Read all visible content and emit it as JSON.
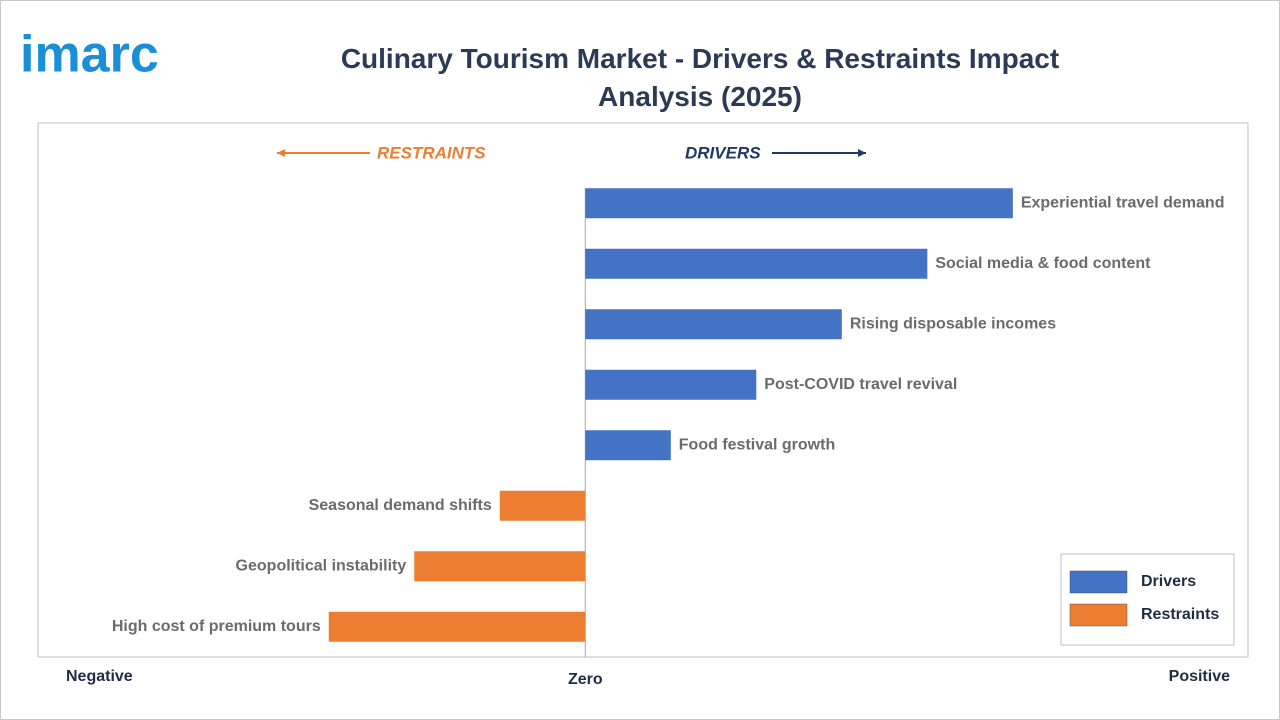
{
  "logo": "imarc",
  "chart_data": {
    "type": "diverging-bar",
    "title": "Culinary Tourism Market - Drivers & Restraints Impact Analysis (2025)",
    "annotations": [
      "RESTRAINTS",
      "DRIVERS"
    ],
    "categories": [
      "Experiential travel demand",
      "Social media & food content",
      "Rising disposable incomes",
      "Post-COVID travel revival",
      "Food festival growth",
      "Seasonal demand shifts",
      "Geopolitical instability",
      "High cost of premium tours"
    ],
    "series": [
      {
        "name": "Drivers",
        "color": "#4472c4",
        "values": [
          5,
          4,
          3,
          2,
          1,
          null,
          null,
          null
        ]
      },
      {
        "name": "Restraints",
        "color": "#ed7d31",
        "values": [
          null,
          null,
          null,
          null,
          null,
          -1,
          -2,
          -3
        ]
      }
    ],
    "xlim": [
      -6.4,
      7.75
    ],
    "xticks": [
      {
        "value": -6.4,
        "label": "Negative"
      },
      {
        "value": 0,
        "label": "Zero"
      },
      {
        "value": 7.75,
        "label": "Positive"
      }
    ],
    "legend": "bottom-right"
  }
}
